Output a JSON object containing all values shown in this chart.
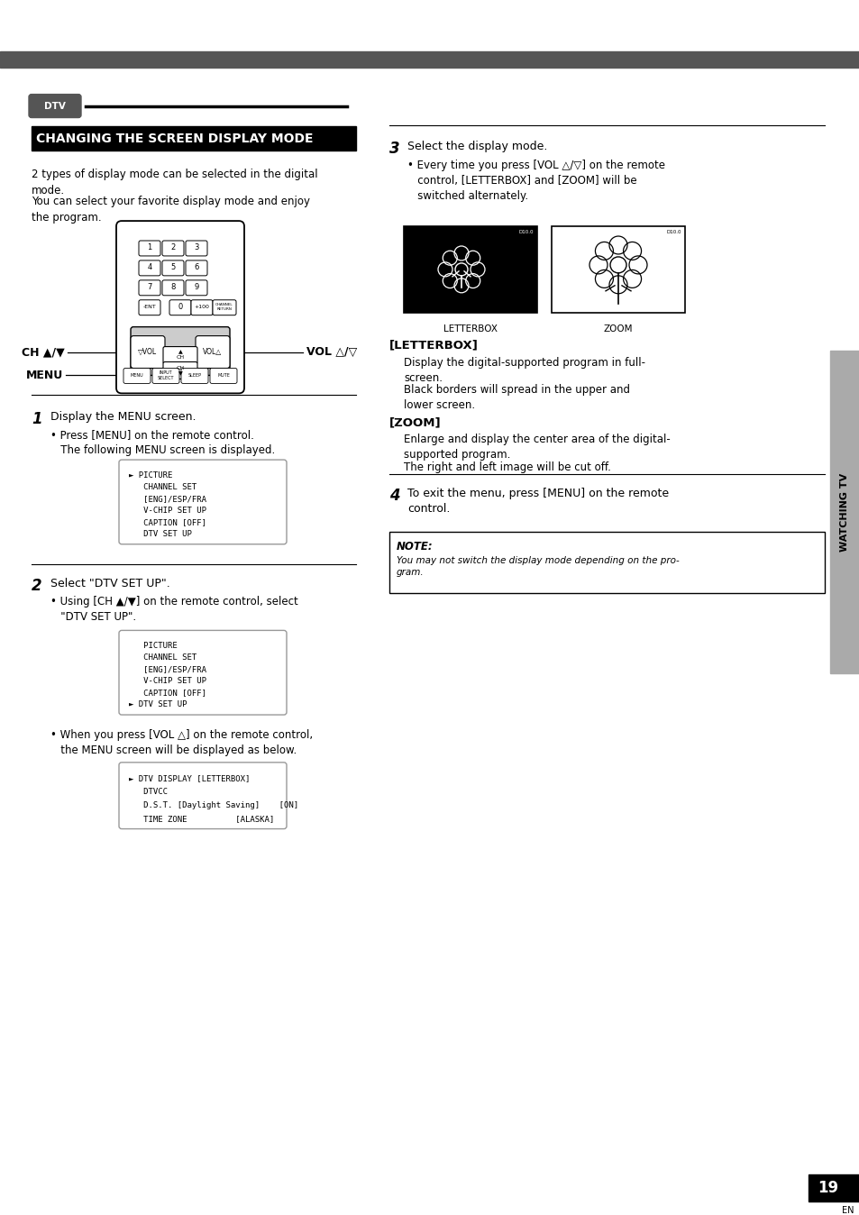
{
  "page_bg": "#ffffff",
  "top_bar_color": "#555555",
  "title_bg": "#000000",
  "title_text": "CHANGING THE SCREEN DISPLAY MODE",
  "title_color": "#ffffff",
  "dtv_badge_text": "DTV",
  "dtv_badge_bg": "#555555",
  "dtv_badge_text_color": "#ffffff",
  "section_line_color": "#000000",
  "body_text_color": "#000000",
  "note_bg": "#ffffff",
  "note_border": "#000000",
  "right_tab_bg": "#888888",
  "right_tab_text": "WATCHING TV",
  "page_num": "19",
  "page_num_bg": "#000000",
  "page_num_color": "#ffffff",
  "para1": "2 types of display mode can be selected in the digital\nmode.",
  "para2": "You can select your favorite display mode and enjoy\nthe program.",
  "step1_bullet": "• Press [MENU] on the remote control.\n   The following MENU screen is displayed.",
  "menu1_lines": [
    "► PICTURE",
    "   CHANNEL SET",
    "   [ENG]/ESP/FRA",
    "   V-CHIP SET UP",
    "   CAPTION [OFF]",
    "   DTV SET UP"
  ],
  "step2_bullet": "• Using [CH ▲/▼] on the remote control, select\n   \"DTV SET UP\".",
  "menu2_lines": [
    "   PICTURE",
    "   CHANNEL SET",
    "   [ENG]/ESP/FRA",
    "   V-CHIP SET UP",
    "   CAPTION [OFF]",
    "► DTV SET UP"
  ],
  "step2b_bullet": "• When you press [VOL △] on the remote control,\n   the MENU screen will be displayed as below.",
  "menu3_lines": [
    "► DTV DISPLAY [LETTERBOX]",
    "   DTVCC",
    "   D.S.T. [Daylight Saving]    [ON]",
    "   TIME ZONE          [ALASKA]"
  ],
  "step3_bullet": "• Every time you press [VOL △/▽] on the remote\n   control, [LETTERBOX] and [ZOOM] will be\n   switched alternately.",
  "letterbox_label": "LETTERBOX",
  "zoom_label": "ZOOM",
  "letterbox_section_title": "[LETTERBOX]",
  "letterbox_desc1": "Display the digital-supported program in full-\nscreen.",
  "letterbox_desc2": "Black borders will spread in the upper and\nlower screen.",
  "zoom_section_title": "[ZOOM]",
  "zoom_desc1": "Enlarge and display the center area of the digital-\nsupported program.",
  "zoom_desc2": "The right and left image will be cut off.",
  "step4_text": "To exit the menu, press [MENU] on the remote\ncontrol.",
  "note_title": "NOTE:",
  "note_body": "You may not switch the display mode depending on the pro-\ngram.",
  "ch_label": "CH ▲/▼",
  "menu_label": "MENU",
  "vol_label": "VOL △/▽"
}
